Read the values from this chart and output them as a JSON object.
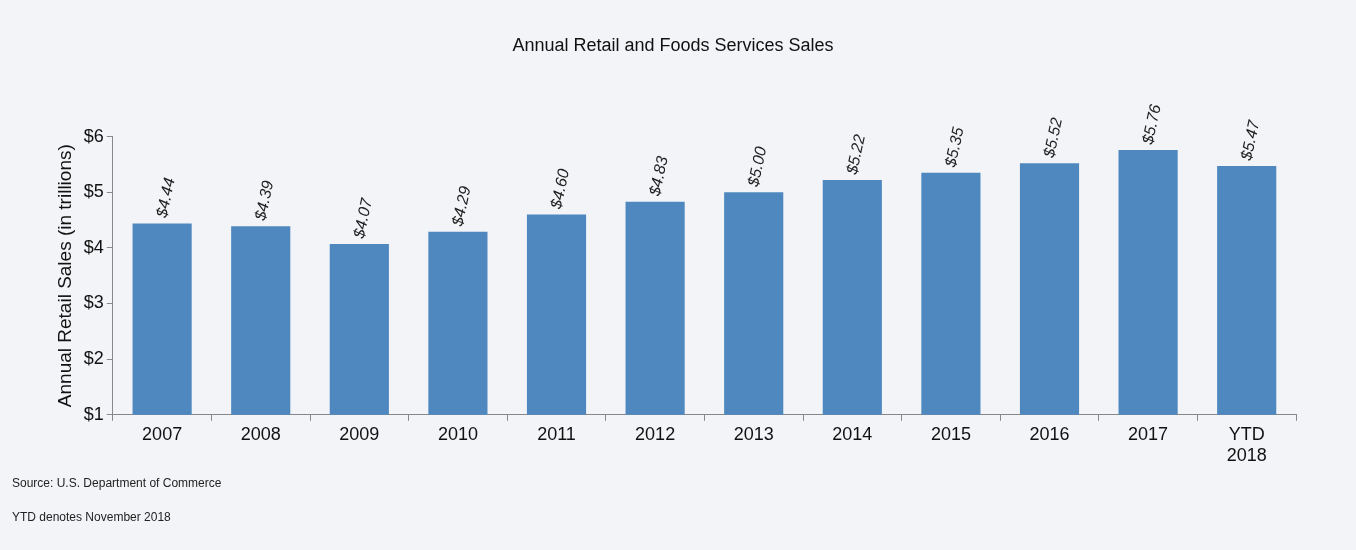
{
  "chart_data": {
    "type": "bar",
    "title": "Annual Retail and Foods Services Sales",
    "ylabel": "Annual Retail Sales (in trillions)",
    "categories": [
      "2007",
      "2008",
      "2009",
      "2010",
      "2011",
      "2012",
      "2013",
      "2014",
      "2015",
      "2016",
      "2017",
      "YTD 2018"
    ],
    "values": [
      4.44,
      4.39,
      4.07,
      4.29,
      4.6,
      4.83,
      5.0,
      5.22,
      5.35,
      5.52,
      5.76,
      5.47
    ],
    "value_labels": [
      "$4.44",
      "$4.39",
      "$4.07",
      "$4.29",
      "$4.60",
      "$4.83",
      "$5.00",
      "$5.22",
      "$5.35",
      "$5.52",
      "$5.76",
      "$5.47"
    ],
    "color": "#4f88bf",
    "ylim": [
      1,
      6
    ],
    "yticks": [
      {
        "value": 1,
        "label": "$1"
      },
      {
        "value": 2,
        "label": "$2"
      },
      {
        "value": 3,
        "label": "$3"
      },
      {
        "value": 4,
        "label": "$4"
      },
      {
        "value": 5,
        "label": "$5"
      },
      {
        "value": 6,
        "label": "$6"
      }
    ],
    "grid": false,
    "legend": false,
    "annotations": [
      "Source: U.S. Department of Commerce",
      "YTD denotes November 2018"
    ]
  }
}
